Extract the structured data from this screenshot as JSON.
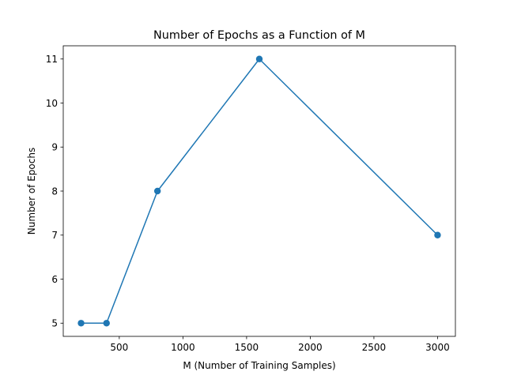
{
  "chart_data": {
    "type": "line",
    "title": "Number of Epochs as a Function of M",
    "xlabel": "M (Number of Training Samples)",
    "ylabel": "Number of Epochs",
    "x": [
      200,
      400,
      800,
      1600,
      3000
    ],
    "series": [
      {
        "name": "",
        "values": [
          5,
          5,
          8,
          11,
          7
        ],
        "color": "#1f77b4"
      }
    ],
    "xlim": [
      60,
      3140
    ],
    "ylim": [
      4.7,
      11.3
    ],
    "xticks": [
      500,
      1000,
      1500,
      2000,
      2500,
      3000
    ],
    "yticks": [
      5,
      6,
      7,
      8,
      9,
      10,
      11
    ],
    "grid": false,
    "markers": true
  }
}
